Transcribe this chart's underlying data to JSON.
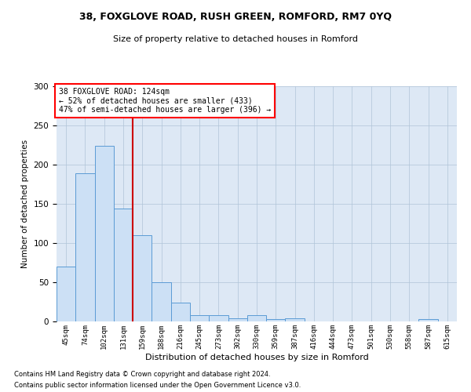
{
  "title1": "38, FOXGLOVE ROAD, RUSH GREEN, ROMFORD, RM7 0YQ",
  "title2": "Size of property relative to detached houses in Romford",
  "xlabel": "Distribution of detached houses by size in Romford",
  "ylabel": "Number of detached properties",
  "bar_labels": [
    "45sqm",
    "74sqm",
    "102sqm",
    "131sqm",
    "159sqm",
    "188sqm",
    "216sqm",
    "245sqm",
    "273sqm",
    "302sqm",
    "330sqm",
    "359sqm",
    "387sqm",
    "416sqm",
    "444sqm",
    "473sqm",
    "501sqm",
    "530sqm",
    "558sqm",
    "587sqm",
    "615sqm"
  ],
  "bar_values": [
    70,
    189,
    224,
    144,
    110,
    50,
    24,
    8,
    8,
    4,
    8,
    3,
    4,
    0,
    0,
    0,
    0,
    0,
    0,
    3,
    0
  ],
  "bar_color": "#cce0f5",
  "bar_edge_color": "#5b9bd5",
  "reference_line_x": 3.5,
  "annotation_title": "38 FOXGLOVE ROAD: 124sqm",
  "annotation_line1": "← 52% of detached houses are smaller (433)",
  "annotation_line2": "47% of semi-detached houses are larger (396) →",
  "vline_color": "#cc0000",
  "ylim": [
    0,
    300
  ],
  "yticks": [
    0,
    50,
    100,
    150,
    200,
    250,
    300
  ],
  "footnote1": "Contains HM Land Registry data © Crown copyright and database right 2024.",
  "footnote2": "Contains public sector information licensed under the Open Government Licence v3.0.",
  "background_color": "#ffffff",
  "ax_facecolor": "#dde8f5",
  "grid_color": "#b0c4d8"
}
